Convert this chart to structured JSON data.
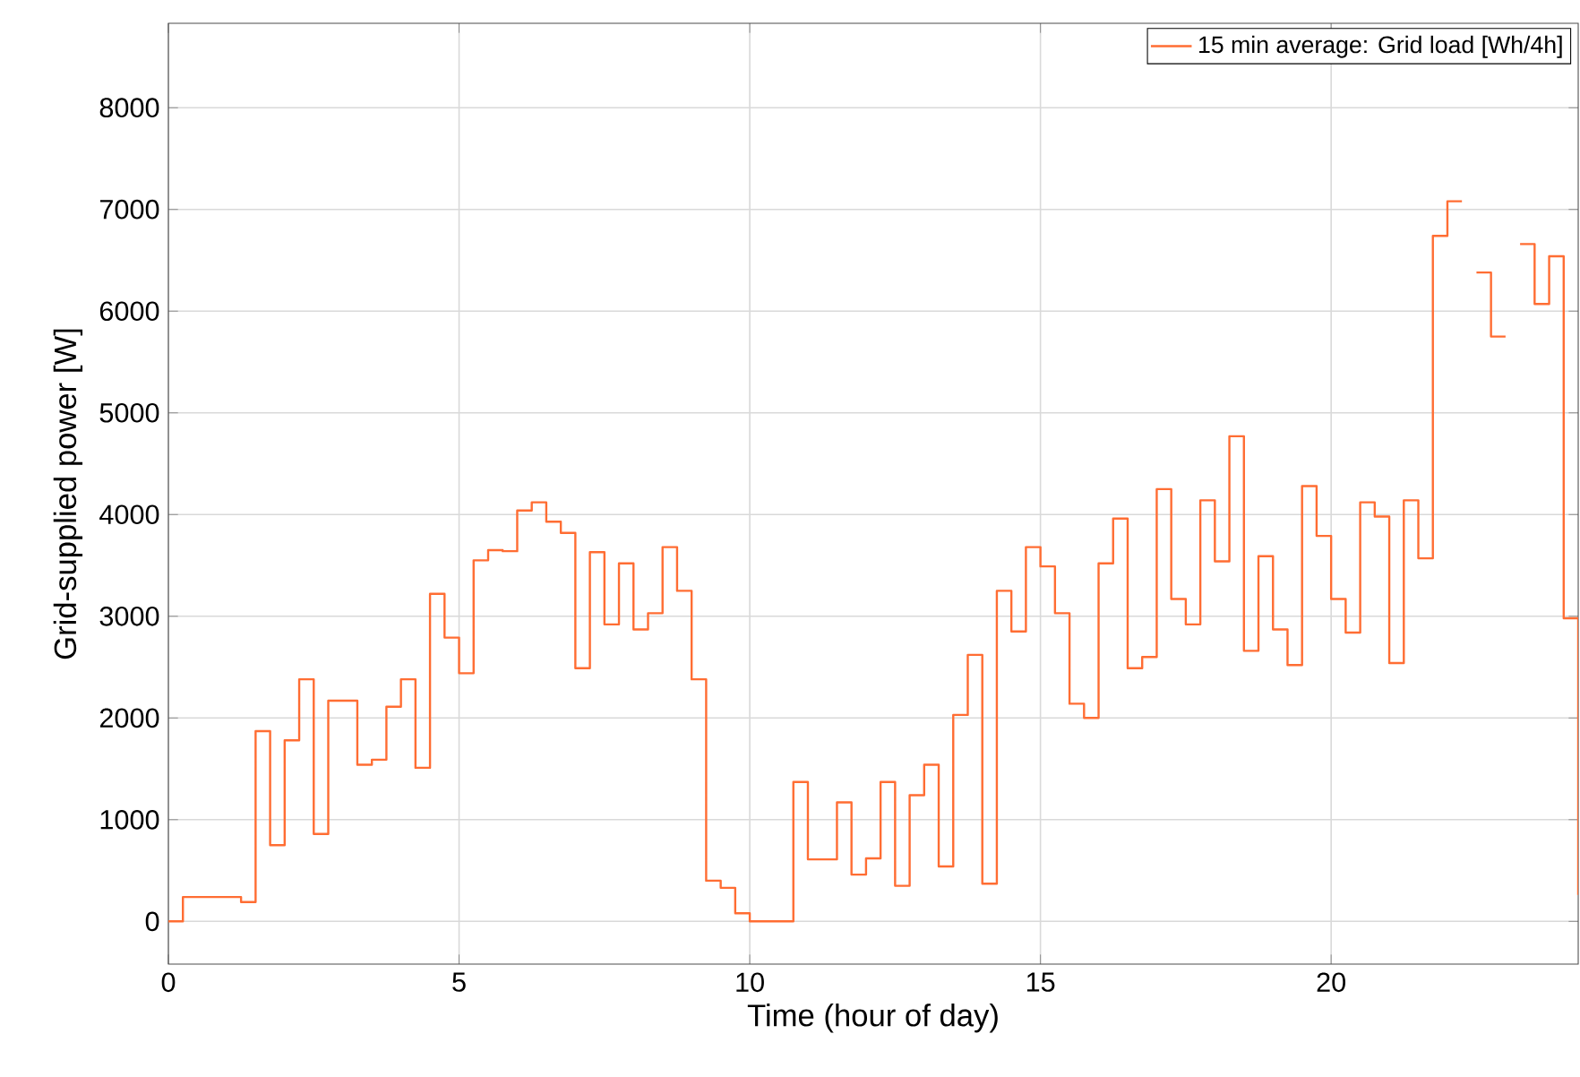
{
  "chart_data": {
    "type": "step",
    "xlabel": "Time (hour of day)",
    "ylabel": "Grid-supplied power [W]",
    "xlim": [
      0,
      24.25
    ],
    "ylim": [
      -420,
      8830
    ],
    "xticks": [
      0,
      5,
      10,
      15,
      20
    ],
    "yticks": [
      0,
      1000,
      2000,
      3000,
      4000,
      5000,
      6000,
      7000,
      8000
    ],
    "grid": true,
    "legend": "top right",
    "series": [
      {
        "name": "15 min average: Grid load [Wh/4h]",
        "color": "#ff6d33",
        "x": [
          0,
          0.25,
          0.5,
          0.75,
          1,
          1.25,
          1.5,
          1.75,
          2,
          2.25,
          2.5,
          2.75,
          3,
          3.25,
          3.5,
          3.75,
          4,
          4.25,
          4.5,
          4.75,
          5,
          5.25,
          5.5,
          5.75,
          6,
          6.25,
          6.5,
          6.75,
          7,
          7.25,
          7.5,
          7.75,
          8,
          8.25,
          8.5,
          8.75,
          9,
          9.25,
          9.5,
          9.75,
          10,
          10.25,
          10.5,
          10.75,
          11,
          11.25,
          11.5,
          11.75,
          12,
          12.25,
          12.5,
          12.75,
          13,
          13.25,
          13.5,
          13.75,
          14,
          14.25,
          14.5,
          14.75,
          15,
          15.25,
          15.5,
          15.75,
          16,
          16.25,
          16.5,
          16.75,
          17,
          17.25,
          17.5,
          17.75,
          18,
          18.25,
          18.5,
          18.75,
          19,
          19.25,
          19.5,
          19.75,
          20,
          20.25,
          20.5,
          20.75,
          21,
          21.25,
          21.5,
          21.75,
          22,
          22.25,
          22.5,
          22.75,
          23,
          23.25,
          23.5,
          23.75,
          24,
          24.25
        ],
        "values": [
          0,
          240,
          240,
          240,
          240,
          190,
          1870,
          750,
          1780,
          2380,
          860,
          2170,
          2170,
          1540,
          1590,
          2110,
          2380,
          1510,
          3220,
          2790,
          2440,
          3550,
          3650,
          3640,
          4040,
          4120,
          3930,
          3820,
          2490,
          3630,
          2920,
          3520,
          2870,
          3030,
          3680,
          3250,
          2380,
          400,
          330,
          80,
          0,
          0,
          0,
          1370,
          610,
          610,
          1170,
          460,
          620,
          1370,
          350,
          1240,
          1540,
          540,
          2030,
          2620,
          370,
          3250,
          2850,
          3680,
          3490,
          3030,
          2140,
          2000,
          3520,
          3960,
          2490,
          2600,
          4250,
          3170,
          2920,
          4140,
          3540,
          4770,
          2660,
          3590,
          2870,
          2520,
          4280,
          3790,
          3170,
          2840,
          4120,
          3980,
          2540,
          4140,
          3570,
          6740,
          7080,
          null,
          6380,
          5750,
          null,
          6660,
          6070,
          6540,
          2980,
          260
        ]
      }
    ]
  }
}
